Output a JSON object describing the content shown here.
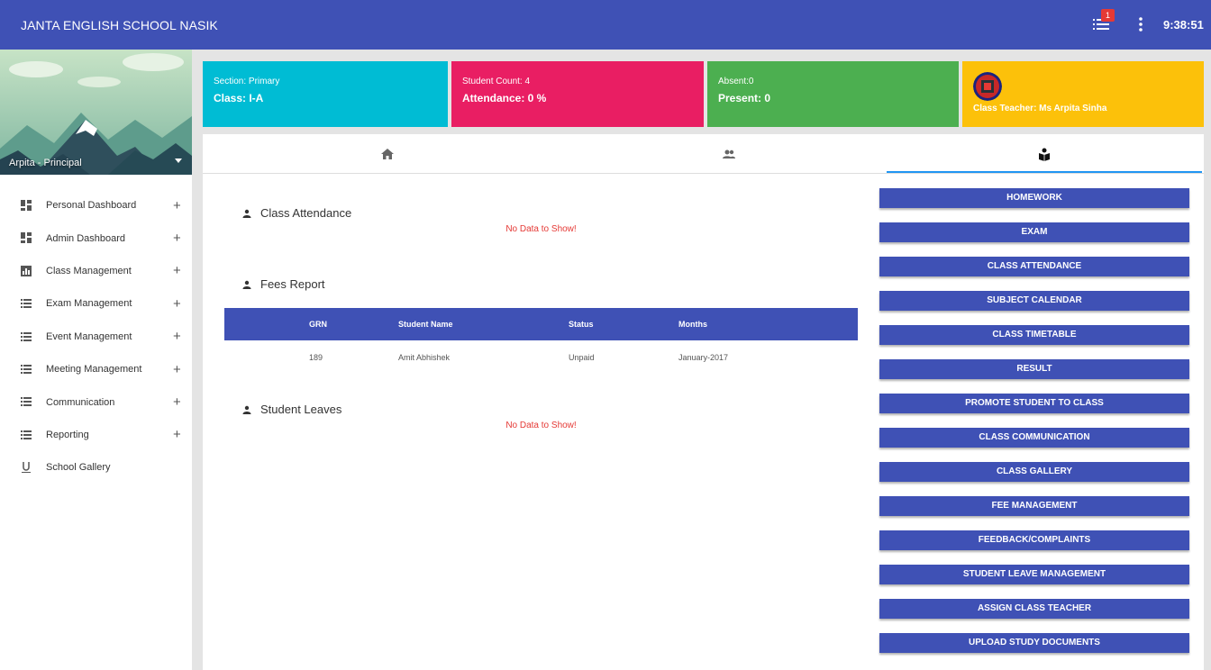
{
  "header": {
    "title": "JANTA ENGLISH SCHOOL NASIK",
    "notification_count": "1",
    "time": "9:38:51",
    "list_icon": "list-icon",
    "more_icon": "more-vertical-icon"
  },
  "sidebar": {
    "profile_name": "Arpita - Principal",
    "items": [
      {
        "label": "Personal Dashboard",
        "icon": "dashboard-icon",
        "expandable": true
      },
      {
        "label": "Admin Dashboard",
        "icon": "dashboard-icon",
        "expandable": true
      },
      {
        "label": "Class Management",
        "icon": "chart-icon",
        "expandable": true
      },
      {
        "label": "Exam Management",
        "icon": "list-icon",
        "expandable": true
      },
      {
        "label": "Event Management",
        "icon": "list-icon",
        "expandable": true
      },
      {
        "label": "Meeting Management",
        "icon": "list-icon",
        "expandable": true
      },
      {
        "label": "Communication",
        "icon": "list-icon",
        "expandable": true
      },
      {
        "label": "Reporting",
        "icon": "list-icon",
        "expandable": true
      },
      {
        "label": "School Gallery",
        "icon": "underline-icon",
        "expandable": false
      }
    ],
    "plus_glyph": "+"
  },
  "cards": {
    "section": {
      "line1": "Section: Primary",
      "line2": "Class: I-A",
      "color": "#00bcd4"
    },
    "count": {
      "line1": "Student Count: 4",
      "line2": "Attendance: 0 %",
      "color": "#e91e63"
    },
    "absent": {
      "line1": "Absent:0",
      "line2": "Present: 0",
      "color": "#4caf50"
    },
    "teacher": {
      "line1": "Class Teacher: Ms Arpita Sinha",
      "color": "#fcc10a"
    }
  },
  "tabs": [
    {
      "icon": "home-icon",
      "active": false
    },
    {
      "icon": "people-icon",
      "active": false
    },
    {
      "icon": "class-icon",
      "active": true
    }
  ],
  "sections": {
    "class_attendance": {
      "title": "Class Attendance",
      "empty": "No Data to Show!"
    },
    "fees_report": {
      "title": "Fees Report",
      "columns": [
        "GRN",
        "Student Name",
        "Status",
        "Months"
      ],
      "rows": [
        [
          "189",
          "Amit Abhishek",
          "Unpaid",
          "January-2017"
        ]
      ]
    },
    "student_leaves": {
      "title": "Student Leaves",
      "empty": "No Data to Show!"
    }
  },
  "actions": [
    "HOMEWORK",
    "EXAM",
    "CLASS ATTENDANCE",
    "SUBJECT CALENDAR",
    "CLASS TIMETABLE",
    "RESULT",
    "PROMOTE STUDENT TO CLASS",
    "CLASS COMMUNICATION",
    "CLASS GALLERY",
    "FEE MANAGEMENT",
    "FEEDBACK/COMPLAINTS",
    "STUDENT LEAVE MANAGEMENT",
    "ASSIGN CLASS TEACHER",
    "UPLOAD STUDY DOCUMENTS"
  ],
  "colors": {
    "primary": "#3f51b5",
    "accent": "#2196f3",
    "error": "#e53935"
  }
}
